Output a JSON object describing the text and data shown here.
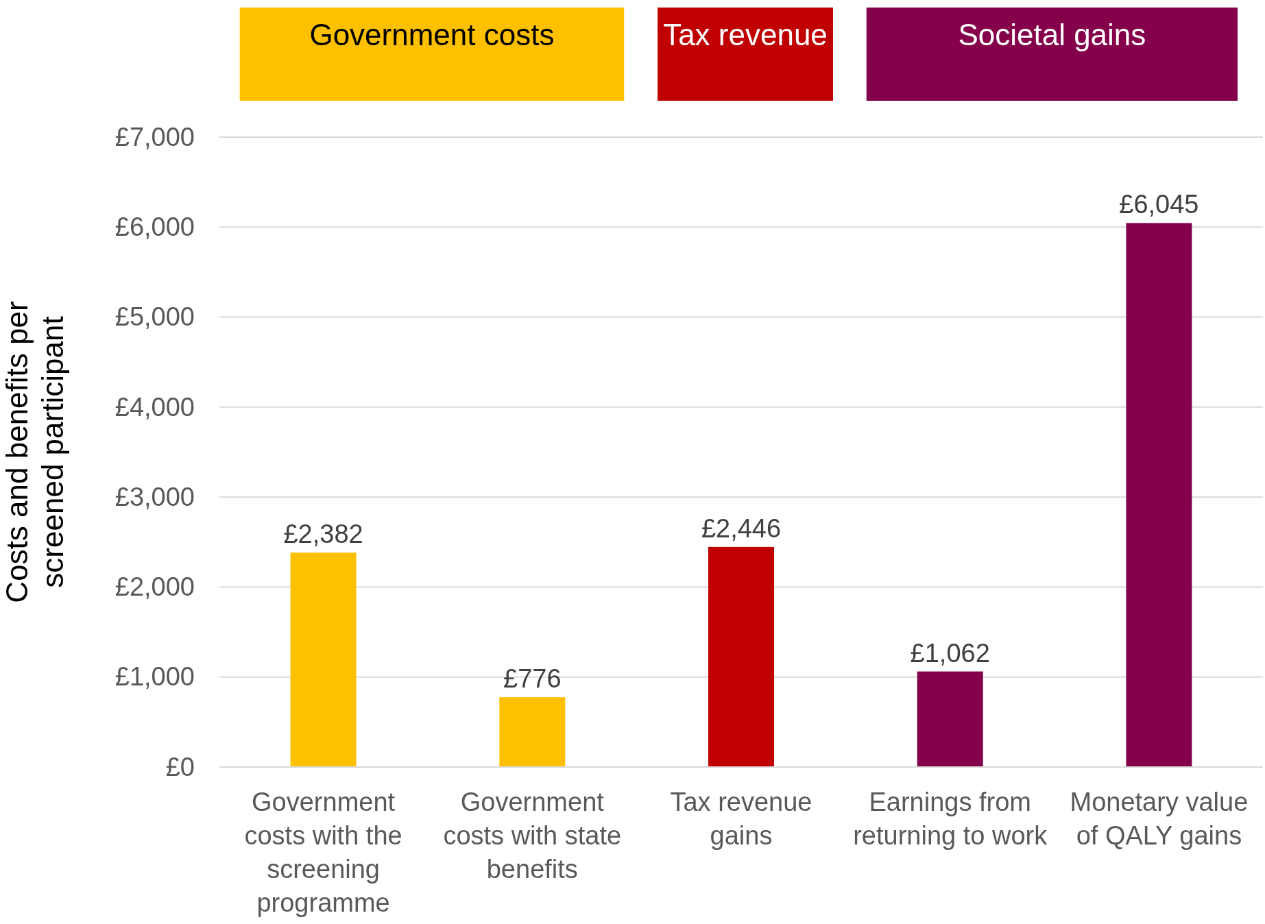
{
  "chart_data": {
    "type": "bar",
    "ylabel": "Costs and benefits per screened participant",
    "categories": [
      "Government costs with the screening programme",
      "Government costs with state benefits",
      "Tax revenue gains",
      "Earnings from returning to work",
      "Monetary value of QALY gains"
    ],
    "series": [
      {
        "name": "Government costs",
        "color": "#ffc000",
        "values": [
          2382,
          776,
          null,
          null,
          null
        ]
      },
      {
        "name": "Tax revenue",
        "color": "#c00000",
        "values": [
          null,
          null,
          2446,
          null,
          null
        ]
      },
      {
        "name": "Societal gains",
        "color": "#85004b",
        "values": [
          null,
          null,
          null,
          1062,
          6045
        ]
      }
    ],
    "ylim": [
      0,
      7000
    ],
    "yticks": [
      {
        "value": 0,
        "label": "£0"
      },
      {
        "value": 1000,
        "label": "£1,000"
      },
      {
        "value": 2000,
        "label": "£2,000"
      },
      {
        "value": 3000,
        "label": "£3,000"
      },
      {
        "value": 4000,
        "label": "£4,000"
      },
      {
        "value": 5000,
        "label": "£5,000"
      },
      {
        "value": 6000,
        "label": "£6,000"
      },
      {
        "value": 7000,
        "label": "£7,000"
      }
    ],
    "grid": "y",
    "legend": "top",
    "value_labels": [
      "£2,382",
      "£776",
      "£2,446",
      "£1,062",
      "£6,045"
    ]
  }
}
